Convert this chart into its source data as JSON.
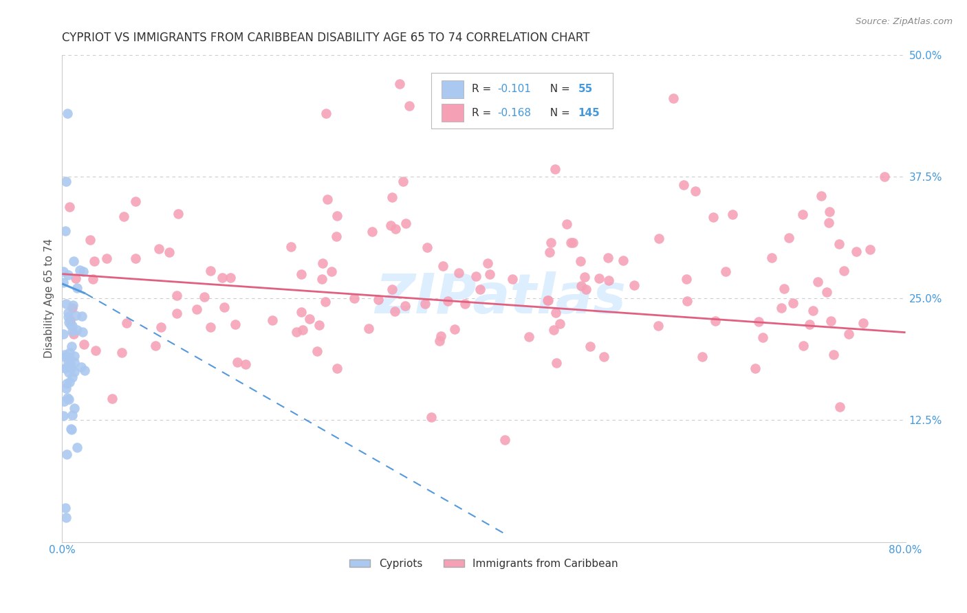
{
  "title": "CYPRIOT VS IMMIGRANTS FROM CARIBBEAN DISABILITY AGE 65 TO 74 CORRELATION CHART",
  "source": "Source: ZipAtlas.com",
  "ylabel_label": "Disability Age 65 to 74",
  "xlim": [
    0,
    0.8
  ],
  "ylim": [
    0,
    0.5
  ],
  "legend_r1_val": "-0.101",
  "legend_n1_val": "55",
  "legend_r2_val": "-0.168",
  "legend_n2_val": "145",
  "cypriot_color": "#aac8f0",
  "caribbean_color": "#f5a0b5",
  "trendline_cypriot_color": "#5599dd",
  "trendline_caribbean_color": "#e06080",
  "background_color": "#ffffff",
  "grid_color": "#cccccc",
  "title_color": "#333333",
  "axis_color": "#4499dd",
  "watermark_color": "#ddeeff"
}
